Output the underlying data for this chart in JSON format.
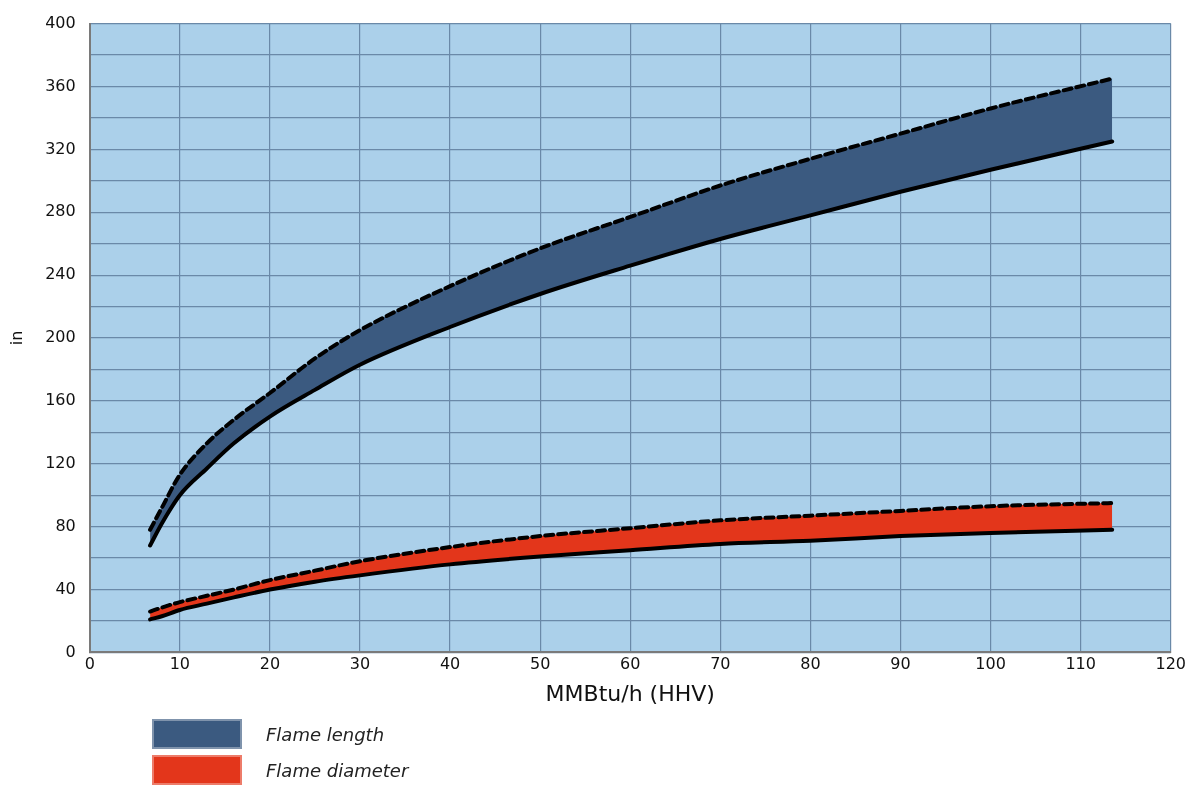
{
  "chart_data": {
    "type": "area",
    "xlabel": "MMBtu/h (HHV)",
    "ylabel": "in",
    "xlim": [
      0,
      120
    ],
    "xticks": [
      0,
      10,
      20,
      30,
      40,
      50,
      60,
      70,
      80,
      90,
      100,
      110,
      120
    ],
    "ylim": [
      0,
      400
    ],
    "yticks": [
      0,
      {
        "value": 20,
        "label": null
      },
      40,
      {
        "value": 60,
        "label": null
      },
      80,
      {
        "value": 100,
        "label": null
      },
      120,
      {
        "value": 140,
        "label": null
      },
      160,
      {
        "value": 180,
        "label": null
      },
      200,
      {
        "value": 220,
        "label": null
      },
      240,
      {
        "value": 260,
        "label": null
      },
      280,
      {
        "value": 300,
        "label": null
      },
      320,
      {
        "value": 340,
        "label": null
      },
      360,
      {
        "value": 380,
        "label": null
      },
      400
    ],
    "grid": true,
    "legend": "bottom left",
    "line_style": "dashed",
    "series": [
      {
        "name": "Flame length",
        "color": "#3b5a80",
        "x": [
          6.7,
          8,
          10,
          13,
          16,
          20,
          25,
          30,
          40,
          50,
          60,
          70,
          80,
          90,
          100,
          113.5
        ],
        "values": [
          78,
          92,
          113,
          133,
          148,
          165,
          187,
          205,
          233,
          257,
          277,
          297,
          314,
          330,
          346,
          365
        ]
      },
      {
        "type": "line",
        "color": "#000000",
        "line_style": "solid",
        "x": [
          6.7,
          8,
          10,
          13,
          16,
          20,
          25,
          30,
          40,
          50,
          60,
          70,
          80,
          90,
          100,
          113.5
        ],
        "values": [
          68,
          82,
          100,
          117,
          133,
          150,
          167,
          183,
          207,
          228,
          246,
          263,
          278,
          293,
          307,
          325
        ]
      },
      {
        "name": "Flame diameter",
        "color": "#e3361b",
        "x": [
          6.7,
          8,
          10,
          13,
          16,
          20,
          25,
          30,
          40,
          50,
          60,
          70,
          80,
          90,
          100,
          113.5
        ],
        "values": [
          26,
          28.5,
          32,
          36,
          40,
          46,
          52,
          58,
          67,
          74,
          79,
          84,
          87,
          90,
          93,
          95
        ]
      },
      {
        "type": "line",
        "color": "#000000",
        "line_style": "solid",
        "x": [
          6.7,
          8,
          10,
          13,
          16,
          20,
          25,
          30,
          40,
          50,
          60,
          70,
          80,
          90,
          100,
          113.5
        ],
        "values": [
          21,
          23,
          27,
          31,
          35,
          40,
          45,
          49,
          56,
          61,
          65,
          69,
          71,
          74,
          76,
          78
        ]
      }
    ]
  }
}
